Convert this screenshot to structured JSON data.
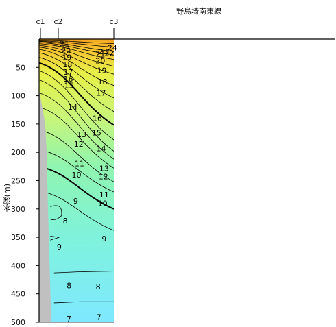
{
  "chart_data": {
    "type": "heatmap",
    "title": "野島埼南東線",
    "xlabel": "",
    "ylabel": "水深(m)",
    "stations": [
      "c1",
      "c2",
      "c3"
    ],
    "ylim": [
      0,
      500
    ],
    "yticks": [
      "50",
      "100",
      "150",
      "200",
      "250",
      "300",
      "350",
      "400",
      "450",
      "500"
    ],
    "colormap": {
      "low_value": 7,
      "high_value": 24,
      "stops": [
        "#7fe8ff",
        "#7ff2df",
        "#8ff5b0",
        "#c8f57a",
        "#e8f048",
        "#f6c030",
        "#f5a020"
      ]
    },
    "contour_labels": [
      {
        "text": "24",
        "station_pos": 0.98,
        "depth": 15
      },
      {
        "text": "23",
        "station_pos": 0.86,
        "depth": 22
      },
      {
        "text": "22",
        "station_pos": 0.94,
        "depth": 25
      },
      {
        "text": "21",
        "station_pos": 0.34,
        "depth": 8
      },
      {
        "text": "21",
        "station_pos": 0.82,
        "depth": 26
      },
      {
        "text": "20",
        "station_pos": 0.36,
        "depth": 20
      },
      {
        "text": "20",
        "station_pos": 0.82,
        "depth": 38
      },
      {
        "text": "19",
        "station_pos": 0.37,
        "depth": 32
      },
      {
        "text": "19",
        "station_pos": 0.84,
        "depth": 55
      },
      {
        "text": "18",
        "station_pos": 0.38,
        "depth": 45
      },
      {
        "text": "18",
        "station_pos": 0.85,
        "depth": 75
      },
      {
        "text": "17",
        "station_pos": 0.39,
        "depth": 58
      },
      {
        "text": "17",
        "station_pos": 0.83,
        "depth": 95
      },
      {
        "text": "16",
        "station_pos": 0.39,
        "depth": 70
      },
      {
        "text": "16",
        "station_pos": 0.78,
        "depth": 140
      },
      {
        "text": "15",
        "station_pos": 0.4,
        "depth": 82
      },
      {
        "text": "15",
        "station_pos": 0.77,
        "depth": 165
      },
      {
        "text": "14",
        "station_pos": 0.45,
        "depth": 120
      },
      {
        "text": "14",
        "station_pos": 0.83,
        "depth": 193
      },
      {
        "text": "13",
        "station_pos": 0.57,
        "depth": 168
      },
      {
        "text": "13",
        "station_pos": 0.87,
        "depth": 228
      },
      {
        "text": "12",
        "station_pos": 0.53,
        "depth": 185
      },
      {
        "text": "12",
        "station_pos": 0.86,
        "depth": 243
      },
      {
        "text": "11",
        "station_pos": 0.54,
        "depth": 220
      },
      {
        "text": "11",
        "station_pos": 0.87,
        "depth": 275
      },
      {
        "text": "10",
        "station_pos": 0.5,
        "depth": 240
      },
      {
        "text": "10",
        "station_pos": 0.85,
        "depth": 290
      },
      {
        "text": "9",
        "station_pos": 0.49,
        "depth": 286
      },
      {
        "text": "9",
        "station_pos": 0.87,
        "depth": 352
      },
      {
        "text": "9",
        "station_pos": 0.27,
        "depth": 367
      },
      {
        "text": "8",
        "station_pos": 0.35,
        "depth": 321
      },
      {
        "text": "8",
        "station_pos": 0.4,
        "depth": 435
      },
      {
        "text": "8",
        "station_pos": 0.79,
        "depth": 437
      },
      {
        "text": "7",
        "station_pos": 0.4,
        "depth": 494
      },
      {
        "text": "7",
        "station_pos": 0.8,
        "depth": 491
      }
    ]
  }
}
